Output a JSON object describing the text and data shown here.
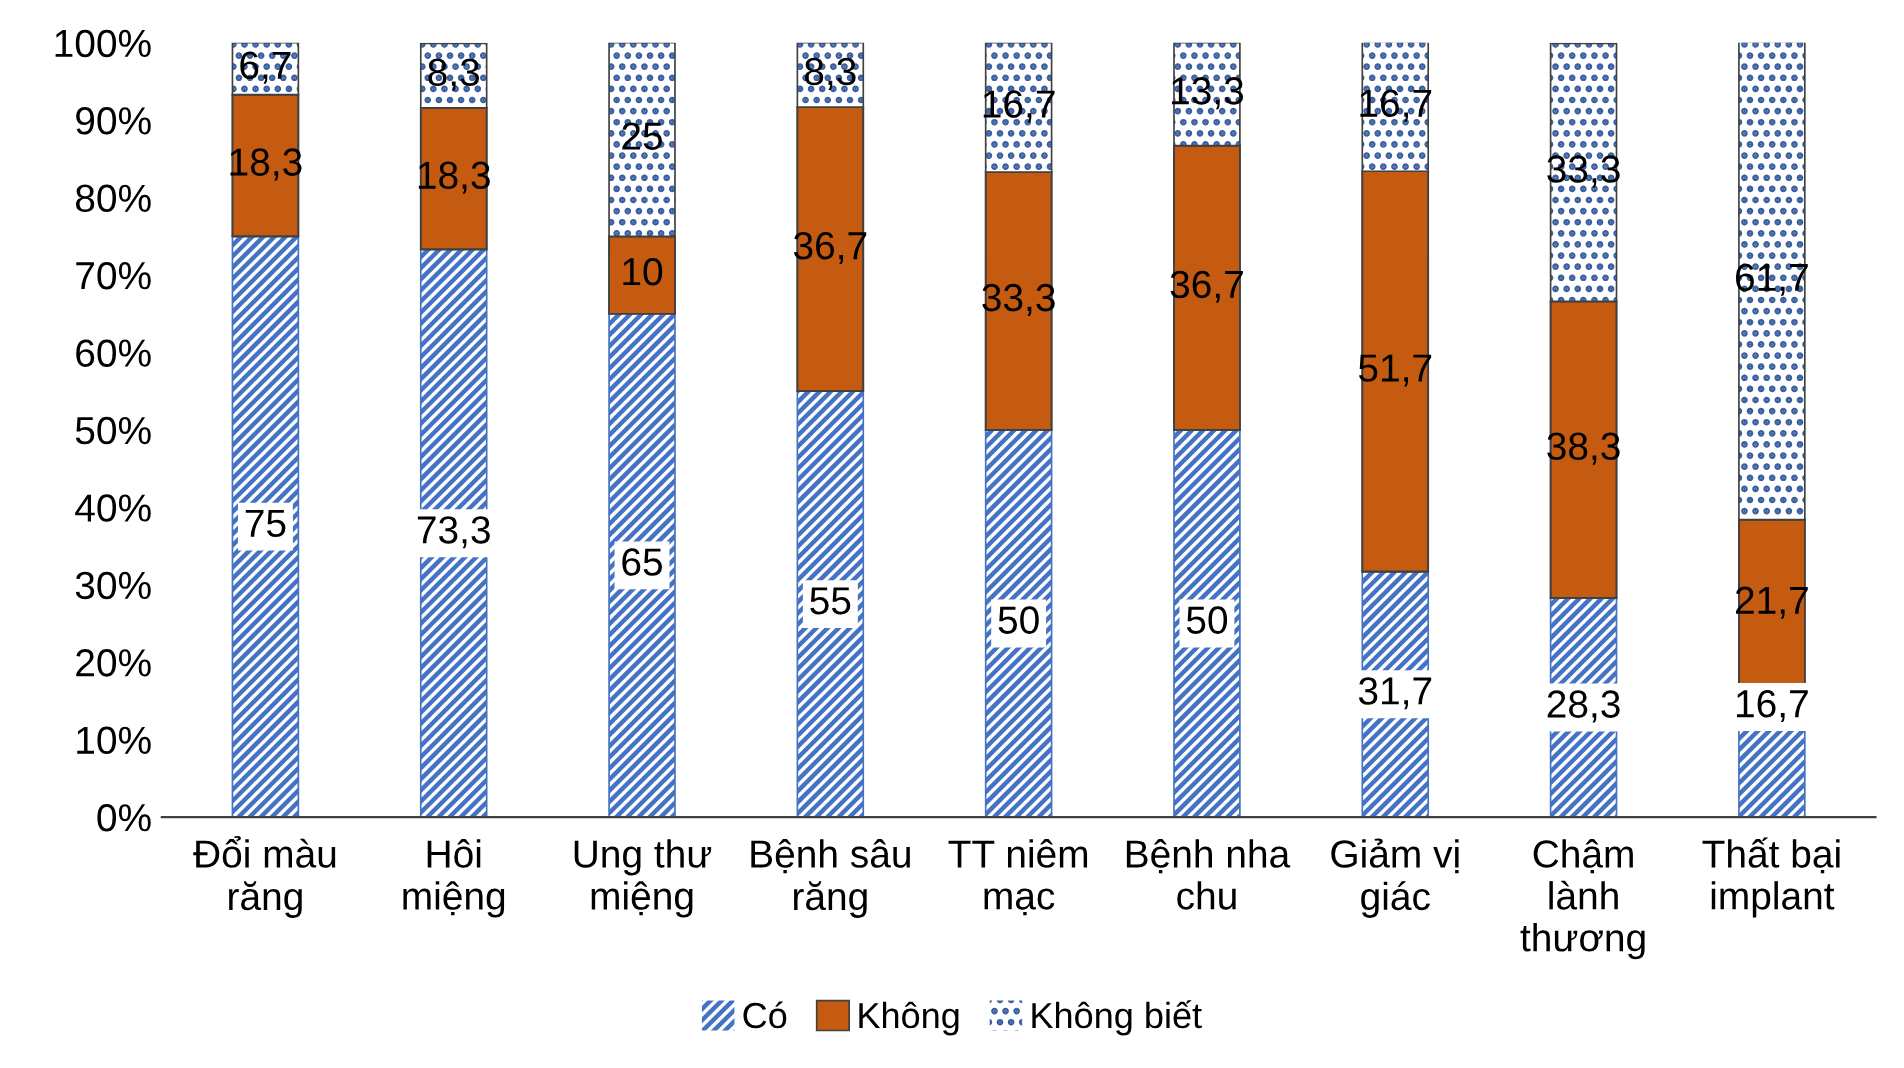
{
  "chart_data": {
    "type": "bar",
    "stacked": true,
    "categories": [
      "Đổi màu\nrăng",
      "Hôi\nmiệng",
      "Ung thư\nmiệng",
      "Bệnh sâu\nrăng",
      "TT niêm\nmạc",
      "Bệnh nha\nchu",
      "Giảm vị\ngiác",
      "Chậm\nlành\nthương",
      "Thất bại\nimplant"
    ],
    "series": [
      {
        "name": "Có",
        "color": "#4472c4",
        "values": [
          75,
          73.3,
          65,
          55,
          50,
          50,
          31.7,
          28.3,
          16.7
        ],
        "value_labels": [
          "75",
          "73,3",
          "65",
          "55",
          "50",
          "50",
          "31,7",
          "28,3",
          "16,7"
        ]
      },
      {
        "name": "Không",
        "color": "#c55a11",
        "values": [
          18.3,
          18.3,
          10,
          36.7,
          33.3,
          36.7,
          51.7,
          38.3,
          21.7
        ],
        "value_labels": [
          "18,3",
          "18,3",
          "10",
          "36,7",
          "33,3",
          "36,7",
          "51,7",
          "38,3",
          "21,7"
        ]
      },
      {
        "name": "Không biết",
        "color": "#ffffff",
        "values": [
          6.7,
          8.3,
          25,
          8.3,
          16.7,
          13.3,
          16.7,
          33.3,
          61.7
        ],
        "value_labels": [
          "6,7",
          "8,3",
          "25",
          "8,3",
          "16,7",
          "13,3",
          "16,7",
          "33,3",
          "61,7"
        ]
      }
    ],
    "ylim": [
      0,
      100
    ],
    "yticks": [
      {
        "value": 0,
        "label": "0%"
      },
      {
        "value": 10,
        "label": "10%"
      },
      {
        "value": 20,
        "label": "20%"
      },
      {
        "value": 30,
        "label": "30%"
      },
      {
        "value": 40,
        "label": "40%"
      },
      {
        "value": 50,
        "label": "50%"
      },
      {
        "value": 60,
        "label": "60%"
      },
      {
        "value": 70,
        "label": "70%"
      },
      {
        "value": 80,
        "label": "80%"
      },
      {
        "value": 90,
        "label": "90%"
      },
      {
        "value": 100,
        "label": "100%"
      }
    ],
    "grid": false,
    "legend": "bottom"
  }
}
